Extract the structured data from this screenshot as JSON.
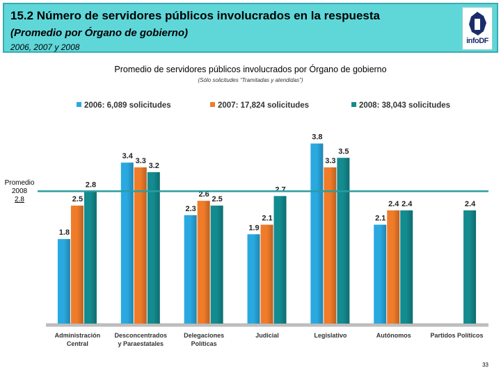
{
  "header": {
    "title": "15.2 Número de servidores públicos involucrados en la respuesta",
    "subtitle": "(Promedio por Órgano de gobierno)",
    "years": "2006, 2007 y 2008",
    "logo_text": "infoDF"
  },
  "chart_data": {
    "type": "bar",
    "title": "Promedio de servidores públicos involucrados por Órgano de gobierno",
    "subtitle": "(Sólo solicitudes “Tramitadas y atendidas”)",
    "categories": [
      [
        "Administración",
        "Central"
      ],
      [
        "Desconcentrados",
        "y Paraestatales"
      ],
      [
        "Delegaciones",
        "Políticas"
      ],
      [
        "Judicial"
      ],
      [
        "Legislativo"
      ],
      [
        "Autónomos"
      ],
      [
        "Partidos Políticos"
      ]
    ],
    "series": [
      {
        "name": "2006: 6,089 solicitudes",
        "color": "#2aa9e0",
        "values": [
          1.8,
          3.4,
          2.3,
          1.9,
          3.8,
          2.1,
          null
        ]
      },
      {
        "name": "2007: 17,824 solicitudes",
        "color": "#f07c2a",
        "values": [
          2.5,
          3.3,
          2.6,
          2.1,
          3.3,
          2.4,
          null
        ]
      },
      {
        "name": "2008: 38,043 solicitudes",
        "color": "#138b8f",
        "values": [
          2.8,
          3.2,
          2.5,
          2.7,
          3.5,
          2.4,
          2.4
        ]
      }
    ],
    "reference_line": {
      "value": 2.8,
      "label": "Promedio 2008",
      "value_label": "2.8",
      "color": "#2a9da0"
    },
    "ylim": [
      0,
      4.1
    ],
    "legend_position": "top"
  },
  "page_number": "33"
}
